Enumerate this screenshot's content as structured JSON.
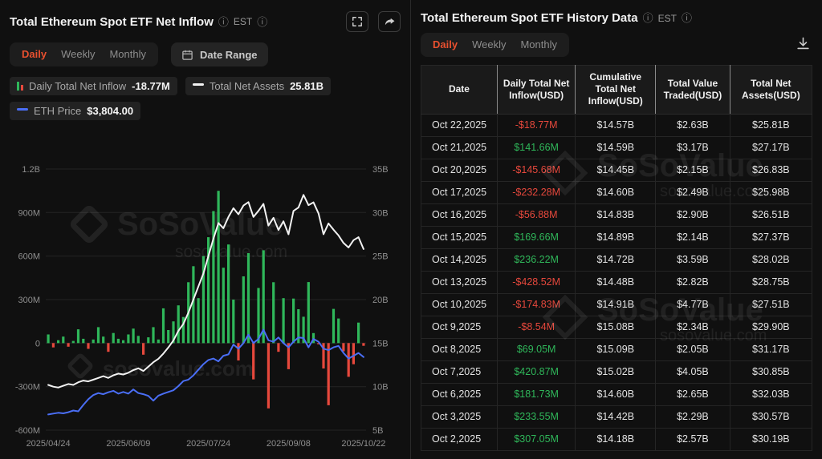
{
  "colors": {
    "background": "#101010",
    "accent_red": "#e8502f",
    "green": "#2fb75a",
    "red": "#e6483c",
    "blue": "#4a6ef5",
    "white_line": "#f2f2f2"
  },
  "icons": {
    "info": "ⓘ"
  },
  "watermark": {
    "brand": "SoSoValue",
    "domain": "sosovalue.com"
  },
  "left_panel": {
    "title": "Total Ethereum Spot ETF Net Inflow",
    "timezone": "EST",
    "tabs": [
      "Daily",
      "Weekly",
      "Monthly"
    ],
    "active_tab": "Daily",
    "date_range_label": "Date Range",
    "legend": [
      {
        "name": "Daily Total Net Inflow",
        "value": "-18.77M"
      },
      {
        "name": "Total Net Assets",
        "value": "25.81B"
      },
      {
        "name": "ETH Price",
        "value": "$3,804.00"
      }
    ]
  },
  "right_panel": {
    "title": "Total Ethereum Spot ETF History Data",
    "timezone": "EST",
    "tabs": [
      "Daily",
      "Weekly",
      "Monthly"
    ],
    "active_tab": "Daily",
    "table": {
      "columns": [
        "Date",
        "Daily Total Net Inflow(USD)",
        "Cumulative Total Net Inflow(USD)",
        "Total Value Traded(USD)",
        "Total Net Assets(USD)"
      ],
      "rows": [
        [
          "Oct 22,2025",
          "-$18.77M",
          "$14.57B",
          "$2.63B",
          "$25.81B"
        ],
        [
          "Oct 21,2025",
          "$141.66M",
          "$14.59B",
          "$3.17B",
          "$27.17B"
        ],
        [
          "Oct 20,2025",
          "-$145.68M",
          "$14.45B",
          "$2.15B",
          "$26.83B"
        ],
        [
          "Oct 17,2025",
          "-$232.28M",
          "$14.60B",
          "$2.49B",
          "$25.98B"
        ],
        [
          "Oct 16,2025",
          "-$56.88M",
          "$14.83B",
          "$2.90B",
          "$26.51B"
        ],
        [
          "Oct 15,2025",
          "$169.66M",
          "$14.89B",
          "$2.14B",
          "$27.37B"
        ],
        [
          "Oct 14,2025",
          "$236.22M",
          "$14.72B",
          "$3.59B",
          "$28.02B"
        ],
        [
          "Oct 13,2025",
          "-$428.52M",
          "$14.48B",
          "$2.82B",
          "$28.75B"
        ],
        [
          "Oct 10,2025",
          "-$174.83M",
          "$14.91B",
          "$4.77B",
          "$27.51B"
        ],
        [
          "Oct 9,2025",
          "-$8.54M",
          "$15.08B",
          "$2.34B",
          "$29.90B"
        ],
        [
          "Oct 8,2025",
          "$69.05M",
          "$15.09B",
          "$2.05B",
          "$31.17B"
        ],
        [
          "Oct 7,2025",
          "$420.87M",
          "$15.02B",
          "$4.05B",
          "$30.85B"
        ],
        [
          "Oct 6,2025",
          "$181.73M",
          "$14.60B",
          "$2.65B",
          "$32.03B"
        ],
        [
          "Oct 3,2025",
          "$233.55M",
          "$14.42B",
          "$2.29B",
          "$30.57B"
        ],
        [
          "Oct 2,2025",
          "$307.05M",
          "$14.18B",
          "$2.57B",
          "$30.19B"
        ]
      ]
    }
  },
  "chart_data": {
    "type": "combo",
    "title": "Total Ethereum Spot ETF Net Inflow",
    "x_tick_labels": [
      "2025/04/24",
      "2025/06/09",
      "2025/07/24",
      "2025/09/08",
      "2025/10/22"
    ],
    "x_tick_index": [
      0,
      16,
      32,
      48,
      63
    ],
    "grid": true,
    "left_axis": {
      "ticks": [
        "1.2B",
        "900M",
        "600M",
        "300M",
        "0",
        "-300M",
        "-600M"
      ],
      "range_M": [
        -600,
        1200
      ]
    },
    "right_axis": {
      "ticks": [
        "35B",
        "30B",
        "25B",
        "20B",
        "15B",
        "10B",
        "5B"
      ],
      "range_B": [
        5,
        35
      ]
    },
    "series": [
      {
        "name": "Daily Total Net Inflow",
        "type": "bar",
        "unit": "USD millions",
        "values": [
          60,
          -30,
          20,
          45,
          -25,
          15,
          95,
          30,
          -40,
          25,
          110,
          45,
          -60,
          70,
          30,
          20,
          60,
          100,
          50,
          -80,
          40,
          110,
          25,
          240,
          90,
          150,
          260,
          180,
          420,
          530,
          310,
          600,
          730,
          910,
          1050,
          520,
          680,
          300,
          -120,
          460,
          620,
          -250,
          380,
          640,
          -450,
          420,
          -60,
          310,
          -180,
          307.05,
          233.55,
          181.73,
          420.87,
          69.05,
          -8.54,
          -174.83,
          -428.52,
          236.22,
          169.66,
          -56.88,
          -232.28,
          -145.68,
          141.66,
          -18.77
        ]
      },
      {
        "name": "Total Net Assets",
        "type": "line",
        "unit": "USD billions",
        "values": [
          10.2,
          10.0,
          9.9,
          10.1,
          10.3,
          10.2,
          10.5,
          10.7,
          10.6,
          10.8,
          11.0,
          11.2,
          11.0,
          11.3,
          11.5,
          11.4,
          11.6,
          11.9,
          12.1,
          11.8,
          12.3,
          12.8,
          13.2,
          13.8,
          14.5,
          15.3,
          16.4,
          17.2,
          18.5,
          20.0,
          21.5,
          23.0,
          25.0,
          27.0,
          28.8,
          28.2,
          29.5,
          30.5,
          29.8,
          30.8,
          31.2,
          29.5,
          30.2,
          31.0,
          28.5,
          29.4,
          28.0,
          29.0,
          27.5,
          30.19,
          30.57,
          32.03,
          30.85,
          31.17,
          29.9,
          27.51,
          28.75,
          28.02,
          27.37,
          26.51,
          25.98,
          26.83,
          27.17,
          25.81
        ]
      },
      {
        "name": "ETH Price",
        "type": "line",
        "unit": "USD",
        "axis_range": [
          1200,
          10500
        ],
        "values": [
          1760,
          1790,
          1820,
          1800,
          1840,
          1900,
          1870,
          2100,
          2300,
          2450,
          2520,
          2480,
          2550,
          2600,
          2500,
          2560,
          2500,
          2650,
          2520,
          2480,
          2420,
          2250,
          2430,
          2500,
          2560,
          2620,
          2770,
          2950,
          3000,
          3150,
          3350,
          3550,
          3700,
          3750,
          3650,
          3850,
          3900,
          4250,
          4100,
          4300,
          4600,
          4300,
          4450,
          4780,
          4400,
          4350,
          4500,
          4300,
          4150,
          4350,
          4500,
          4480,
          4150,
          4450,
          4350,
          4100,
          4050,
          4150,
          4200,
          3950,
          3750,
          3850,
          3950,
          3804
        ]
      }
    ]
  }
}
